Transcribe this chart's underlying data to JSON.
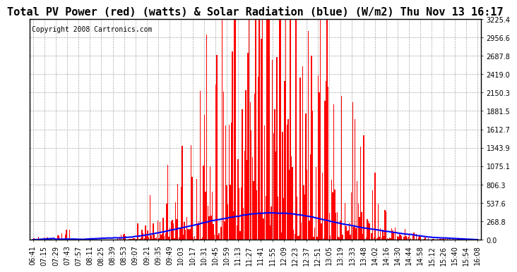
{
  "title": "Total PV Power (red) (watts) & Solar Radiation (blue) (W/m2) Thu Nov 13 16:17",
  "copyright": "Copyright 2008 Cartronics.com",
  "background_color": "#ffffff",
  "plot_bg_color": "#ffffff",
  "grid_color": "#aaaaaa",
  "ymin": 0.0,
  "ymax": 3225.4,
  "yticks": [
    0.0,
    268.8,
    537.6,
    806.3,
    1075.1,
    1343.9,
    1612.7,
    1881.5,
    2150.3,
    2419.0,
    2687.8,
    2956.6,
    3225.4
  ],
  "red_color": "#ff0000",
  "blue_color": "#0000ff",
  "title_fontsize": 11,
  "copyright_fontsize": 7,
  "tick_fontsize": 7,
  "x_tick_labels": [
    "06:41",
    "07:15",
    "07:29",
    "07:43",
    "07:57",
    "08:11",
    "08:25",
    "08:39",
    "08:53",
    "09:07",
    "09:21",
    "09:35",
    "09:49",
    "10:03",
    "10:17",
    "10:31",
    "10:45",
    "10:59",
    "11:13",
    "11:27",
    "11:41",
    "11:55",
    "12:09",
    "12:23",
    "12:37",
    "12:51",
    "13:05",
    "13:19",
    "13:33",
    "13:48",
    "14:02",
    "14:16",
    "14:30",
    "14:44",
    "14:58",
    "15:12",
    "15:26",
    "15:40",
    "15:54",
    "16:08"
  ]
}
